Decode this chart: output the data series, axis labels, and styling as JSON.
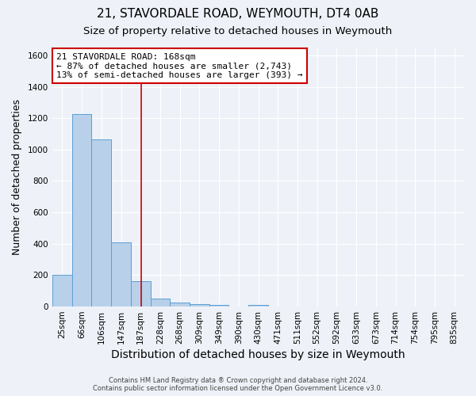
{
  "title1": "21, STAVORDALE ROAD, WEYMOUTH, DT4 0AB",
  "title2": "Size of property relative to detached houses in Weymouth",
  "xlabel": "Distribution of detached houses by size in Weymouth",
  "ylabel": "Number of detached properties",
  "footer1": "Contains HM Land Registry data ® Crown copyright and database right 2024.",
  "footer2": "Contains public sector information licensed under the Open Government Licence v3.0.",
  "bar_labels": [
    "25sqm",
    "66sqm",
    "106sqm",
    "147sqm",
    "187sqm",
    "228sqm",
    "268sqm",
    "309sqm",
    "349sqm",
    "390sqm",
    "430sqm",
    "471sqm",
    "511sqm",
    "552sqm",
    "592sqm",
    "633sqm",
    "673sqm",
    "714sqm",
    "754sqm",
    "795sqm",
    "835sqm"
  ],
  "bar_values": [
    200,
    1225,
    1065,
    410,
    163,
    50,
    25,
    15,
    10,
    0,
    10,
    0,
    0,
    0,
    0,
    0,
    0,
    0,
    0,
    0,
    0
  ],
  "bar_color": "#b8d0ea",
  "bar_edge_color": "#5a9fd4",
  "property_line_color": "#cc0000",
  "annotation_text": "21 STAVORDALE ROAD: 168sqm\n← 87% of detached houses are smaller (2,743)\n13% of semi-detached houses are larger (393) →",
  "annotation_box_color": "#ffffff",
  "annotation_box_edge_color": "#cc0000",
  "ylim": [
    0,
    1650
  ],
  "yticks": [
    0,
    200,
    400,
    600,
    800,
    1000,
    1200,
    1400,
    1600
  ],
  "background_color": "#eef2f8",
  "grid_color": "#ffffff",
  "title1_fontsize": 11,
  "title2_fontsize": 9.5,
  "xlabel_fontsize": 10,
  "ylabel_fontsize": 9,
  "annotation_fontsize": 8,
  "footer_fontsize": 6,
  "tick_fontsize": 7.5
}
